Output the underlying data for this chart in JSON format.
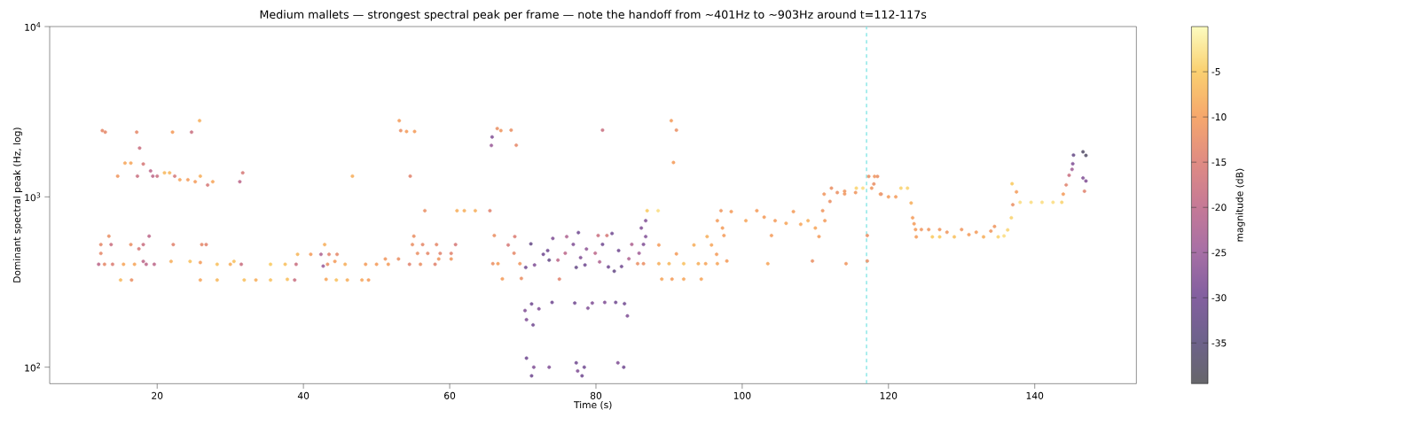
{
  "chart_data": {
    "type": "scatter",
    "title": "Medium mallets — strongest spectral peak per frame — note the handoff from ~401Hz to ~903Hz around t=112-117s",
    "xlabel": "Time (s)",
    "ylabel": "Dominant spectral peak (Hz, log)",
    "clabel": "magnitude (dB)",
    "xlim": [
      5.3,
      153.9
    ],
    "ylim": [
      80,
      10000
    ],
    "log": "y",
    "xticks": [
      20,
      40,
      60,
      80,
      100,
      120,
      140
    ],
    "yticks": [
      {
        "value": 100,
        "label": "10$^{2}$"
      },
      {
        "value": 1000,
        "label": "10$^{3}$"
      },
      {
        "value": 10000,
        "label": "10$^{4}$"
      }
    ],
    "clim": [
      -39.5,
      0
    ],
    "cticks": [
      -35,
      -30,
      -25,
      -20,
      -15,
      -10,
      -5
    ],
    "marker": "circle",
    "ref_lines": [
      {
        "axis": "x",
        "value": 117,
        "color": "#7fe5e5",
        "line_style": "dashed"
      }
    ],
    "x": [
      12.0,
      12.3,
      12.3,
      12.5,
      12.8,
      12.9,
      13.4,
      13.7,
      13.9,
      14.6,
      15.0,
      15.4,
      15.6,
      16.4,
      16.4,
      16.5,
      16.9,
      17.2,
      17.3,
      17.5,
      17.6,
      18.1,
      18.1,
      18.1,
      18.5,
      18.9,
      19.1,
      19.4,
      19.6,
      20.0,
      21.0,
      21.7,
      21.9,
      22.1,
      22.2,
      22.4,
      23.1,
      24.2,
      24.5,
      24.7,
      25.2,
      25.8,
      25.9,
      25.9,
      25.9,
      26.1,
      26.7,
      26.9,
      27.6,
      28.2,
      28.2,
      30.0,
      30.5,
      31.3,
      31.5,
      31.7,
      31.9,
      33.5,
      35.5,
      35.5,
      37.5,
      37.8,
      38.8,
      39.0,
      39.2,
      41.0,
      42.4,
      42.7,
      42.9,
      43.1,
      43.3,
      43.5,
      44.3,
      44.5,
      44.6,
      45.7,
      46.0,
      46.7,
      48.0,
      48.5,
      48.9,
      50.0,
      51.2,
      51.6,
      53.0,
      53.1,
      53.3,
      54.1,
      54.5,
      54.6,
      54.9,
      55.1,
      55.2,
      55.6,
      56.0,
      56.3,
      56.6,
      57.0,
      58.0,
      58.2,
      58.5,
      58.7,
      60.2,
      60.2,
      60.8,
      61.0,
      62.0,
      63.5,
      65.5,
      65.7,
      65.8,
      65.9,
      66.1,
      66.5,
      66.6,
      67.0,
      67.2,
      68.0,
      68.4,
      68.8,
      68.9,
      69.1,
      69.6,
      69.8,
      70.3,
      70.4,
      70.5,
      70.5,
      71.1,
      71.2,
      71.2,
      71.4,
      71.5,
      71.6,
      72.2,
      72.8,
      73.4,
      73.6,
      73.6,
      74.0,
      74.1,
      74.8,
      75.0,
      75.8,
      76.0,
      76.9,
      77.1,
      77.3,
      77.3,
      77.5,
      77.6,
      77.9,
      78.1,
      78.4,
      78.5,
      78.7,
      78.9,
      79.5,
      79.9,
      80.3,
      80.5,
      80.9,
      80.9,
      81.2,
      81.5,
      81.7,
      82.2,
      82.5,
      82.7,
      83.0,
      83.1,
      83.5,
      83.8,
      83.9,
      84.3,
      84.5,
      84.9,
      85.7,
      85.9,
      86.2,
      86.5,
      86.5,
      86.8,
      86.8,
      87.0,
      88.5,
      88.6,
      88.6,
      89.0,
      90.0,
      90.3,
      90.4,
      90.6,
      91.0,
      91.0,
      92.0,
      92.0,
      93.4,
      94.0,
      94.4,
      95.0,
      95.2,
      95.8,
      96.5,
      96.6,
      96.6,
      97.1,
      97.3,
      97.5,
      97.9,
      98.5,
      100.5,
      102.0,
      103.0,
      103.5,
      104.0,
      104.5,
      106.0,
      107.0,
      108.0,
      109.0,
      109.6,
      110.0,
      110.5,
      111.0,
      111.2,
      111.3,
      112.0,
      112.2,
      113.0,
      114.0,
      114.0,
      114.2,
      115.5,
      115.6,
      116.5,
      117.1,
      117.1,
      117.3,
      117.7,
      118.0,
      118.1,
      118.5,
      118.9,
      119.0,
      120.0,
      121.0,
      121.7,
      122.6,
      123.1,
      123.3,
      123.5,
      123.7,
      123.8,
      124.5,
      125.5,
      126.0,
      127.0,
      127.0,
      128.0,
      129.0,
      130.0,
      131.0,
      132.0,
      133.0,
      134.0,
      134.5,
      135.0,
      135.8,
      136.3,
      136.8,
      136.9,
      137.0,
      137.5,
      138.0,
      139.5,
      141.0,
      142.5,
      143.7,
      143.9,
      144.3,
      144.7,
      145.1,
      145.2,
      145.3,
      146.6,
      146.6,
      146.8,
      147.0,
      147.0
    ],
    "values": [
      402,
      466,
      525,
      2450,
      402,
      2400,
      588,
      525,
      402,
      1324,
      325,
      402,
      1580,
      1580,
      525,
      325,
      402,
      2400,
      1324,
      495,
      1935,
      1560,
      525,
      418,
      402,
      588,
      1420,
      1324,
      402,
      1324,
      1385,
      1385,
      418,
      2400,
      525,
      1324,
      1260,
      1260,
      418,
      2400,
      1228,
      2800,
      1324,
      412,
      325,
      525,
      525,
      1174,
      1228,
      325,
      402,
      402,
      418,
      1228,
      402,
      1385,
      325,
      325,
      325,
      402,
      402,
      328,
      325,
      402,
      460,
      460,
      460,
      392,
      525,
      328,
      402,
      460,
      418,
      325,
      460,
      402,
      325,
      1324,
      325,
      402,
      325,
      402,
      432,
      402,
      432,
      2800,
      2450,
      2420,
      402,
      1324,
      525,
      588,
      2420,
      466,
      402,
      525,
      830,
      466,
      402,
      525,
      432,
      466,
      432,
      466,
      525,
      830,
      830,
      830,
      830,
      2004,
      2248,
      405,
      593,
      2520,
      405,
      2450,
      330,
      522,
      2466,
      467,
      585,
      2010,
      405,
      332,
      215,
      385,
      190,
      113,
      530,
      235,
      89,
      177,
      100,
      398,
      220,
      460,
      484,
      425,
      100,
      240,
      570,
      425,
      329,
      467,
      584,
      526,
      238,
      385,
      106,
      95,
      617,
      440,
      89,
      100,
      398,
      494,
      222,
      238,
      467,
      593,
      415,
      526,
      2466,
      240,
      593,
      388,
      610,
      366,
      240,
      106,
      484,
      390,
      100,
      236,
      200,
      433,
      526,
      405,
      467,
      656,
      526,
      405,
      725,
      585,
      830,
      830,
      522,
      405,
      329,
      405,
      2800,
      329,
      1591,
      2466,
      463,
      405,
      329,
      522,
      405,
      329,
      405,
      585,
      522,
      460,
      405,
      725,
      830,
      656,
      593,
      420,
      820,
      725,
      830,
      760,
      405,
      593,
      725,
      700,
      820,
      690,
      725,
      420,
      656,
      585,
      830,
      1038,
      725,
      940,
      1125,
      1060,
      1040,
      1080,
      405,
      1060,
      1125,
      1125,
      593,
      420,
      1318,
      1125,
      1190,
      1318,
      1318,
      1038,
      1038,
      1000,
      1000,
      1125,
      1125,
      920,
      754,
      695,
      643,
      582,
      643,
      643,
      582,
      643,
      582,
      620,
      582,
      643,
      600,
      620,
      582,
      630,
      670,
      582,
      590,
      640,
      754,
      1194,
      900,
      1070,
      929,
      929,
      929,
      929,
      929,
      1038,
      1175,
      1340,
      1450,
      1565,
      1760,
      1840,
      1290,
      1080,
      1750,
      1240
    ],
    "cvalues": [
      -20,
      -13,
      -13,
      -13,
      -13,
      -13,
      -12,
      -18,
      -15,
      -11,
      -7,
      -9,
      -9,
      -9,
      -12,
      -12,
      -9,
      -13,
      -18,
      -16,
      -18,
      -16,
      -18,
      -20,
      -20,
      -20,
      -20,
      -20,
      -20,
      -18,
      -7,
      -7,
      -8,
      -10,
      -14,
      -16,
      -9,
      -10,
      -6,
      -18,
      -10,
      -8,
      -8,
      -10,
      -9,
      -13,
      -14,
      -16,
      -9,
      -7,
      -6,
      -8,
      -6,
      -20,
      -18,
      -16,
      -6,
      -8,
      -6,
      -5,
      -6,
      -6,
      -18,
      -18,
      -7,
      -10,
      -22,
      -25,
      -8,
      -9,
      -12,
      -14,
      -10,
      -6,
      -13,
      -8,
      -8,
      -8,
      -9,
      -10,
      -10,
      -10,
      -11,
      -10,
      -12,
      -10,
      -12,
      -10,
      -14,
      -14,
      -12,
      -12,
      -10,
      -12,
      -12,
      -13,
      -12,
      -13,
      -14,
      -13,
      -11,
      -14,
      -11,
      -14,
      -16,
      -8,
      -8,
      -8,
      -14,
      -25,
      -28,
      -12,
      -12,
      -12,
      -10,
      -11,
      -10,
      -16,
      -12,
      -13,
      -15,
      -13,
      -11,
      -12,
      -28,
      -30,
      -28,
      -30,
      -32,
      -30,
      -30,
      -30,
      -28,
      -28,
      -28,
      -30,
      -30,
      -32,
      -28,
      -30,
      -28,
      -20,
      -14,
      -20,
      -22,
      -28,
      -30,
      -32,
      -30,
      -28,
      -30,
      -28,
      -30,
      -30,
      -30,
      -26,
      -28,
      -28,
      -20,
      -18,
      -22,
      -30,
      -18,
      -28,
      -16,
      -30,
      -30,
      -32,
      -30,
      -28,
      -30,
      -30,
      -30,
      -30,
      -28,
      -22,
      -22,
      -12,
      -24,
      -28,
      -28,
      -12,
      -28,
      -28,
      -5,
      -3,
      -10,
      -8,
      -9,
      -7,
      -10,
      -10,
      -10,
      -12,
      -10,
      -6,
      -9,
      -8,
      -8,
      -9,
      -9,
      -8,
      -9,
      -10,
      -9,
      -10,
      -11,
      -10,
      -10,
      -10,
      -10,
      -9,
      -10,
      -10,
      -9,
      -10,
      -10,
      -9,
      -10,
      -9,
      -8,
      -12,
      -9,
      -10,
      -11,
      -11,
      -10,
      -12,
      -12,
      -12,
      -11,
      -11,
      -11,
      -11,
      -4,
      -3,
      -12,
      -12,
      -12,
      -11,
      -12,
      -11,
      -12,
      -10,
      -12,
      -10,
      -10,
      -4,
      -4,
      -8,
      -10,
      -10,
      -10,
      -10,
      -11,
      -11,
      -5,
      -11,
      -5,
      -11,
      -6,
      -11,
      -10,
      -10,
      -8,
      -11,
      -11,
      -4,
      -3,
      -4,
      -4,
      -5,
      -12,
      -10,
      -3,
      -3,
      -3,
      -3,
      -4,
      -10,
      -14,
      -18,
      -24,
      -28,
      -32,
      -37,
      -28,
      -14,
      -37,
      -28
    ]
  }
}
